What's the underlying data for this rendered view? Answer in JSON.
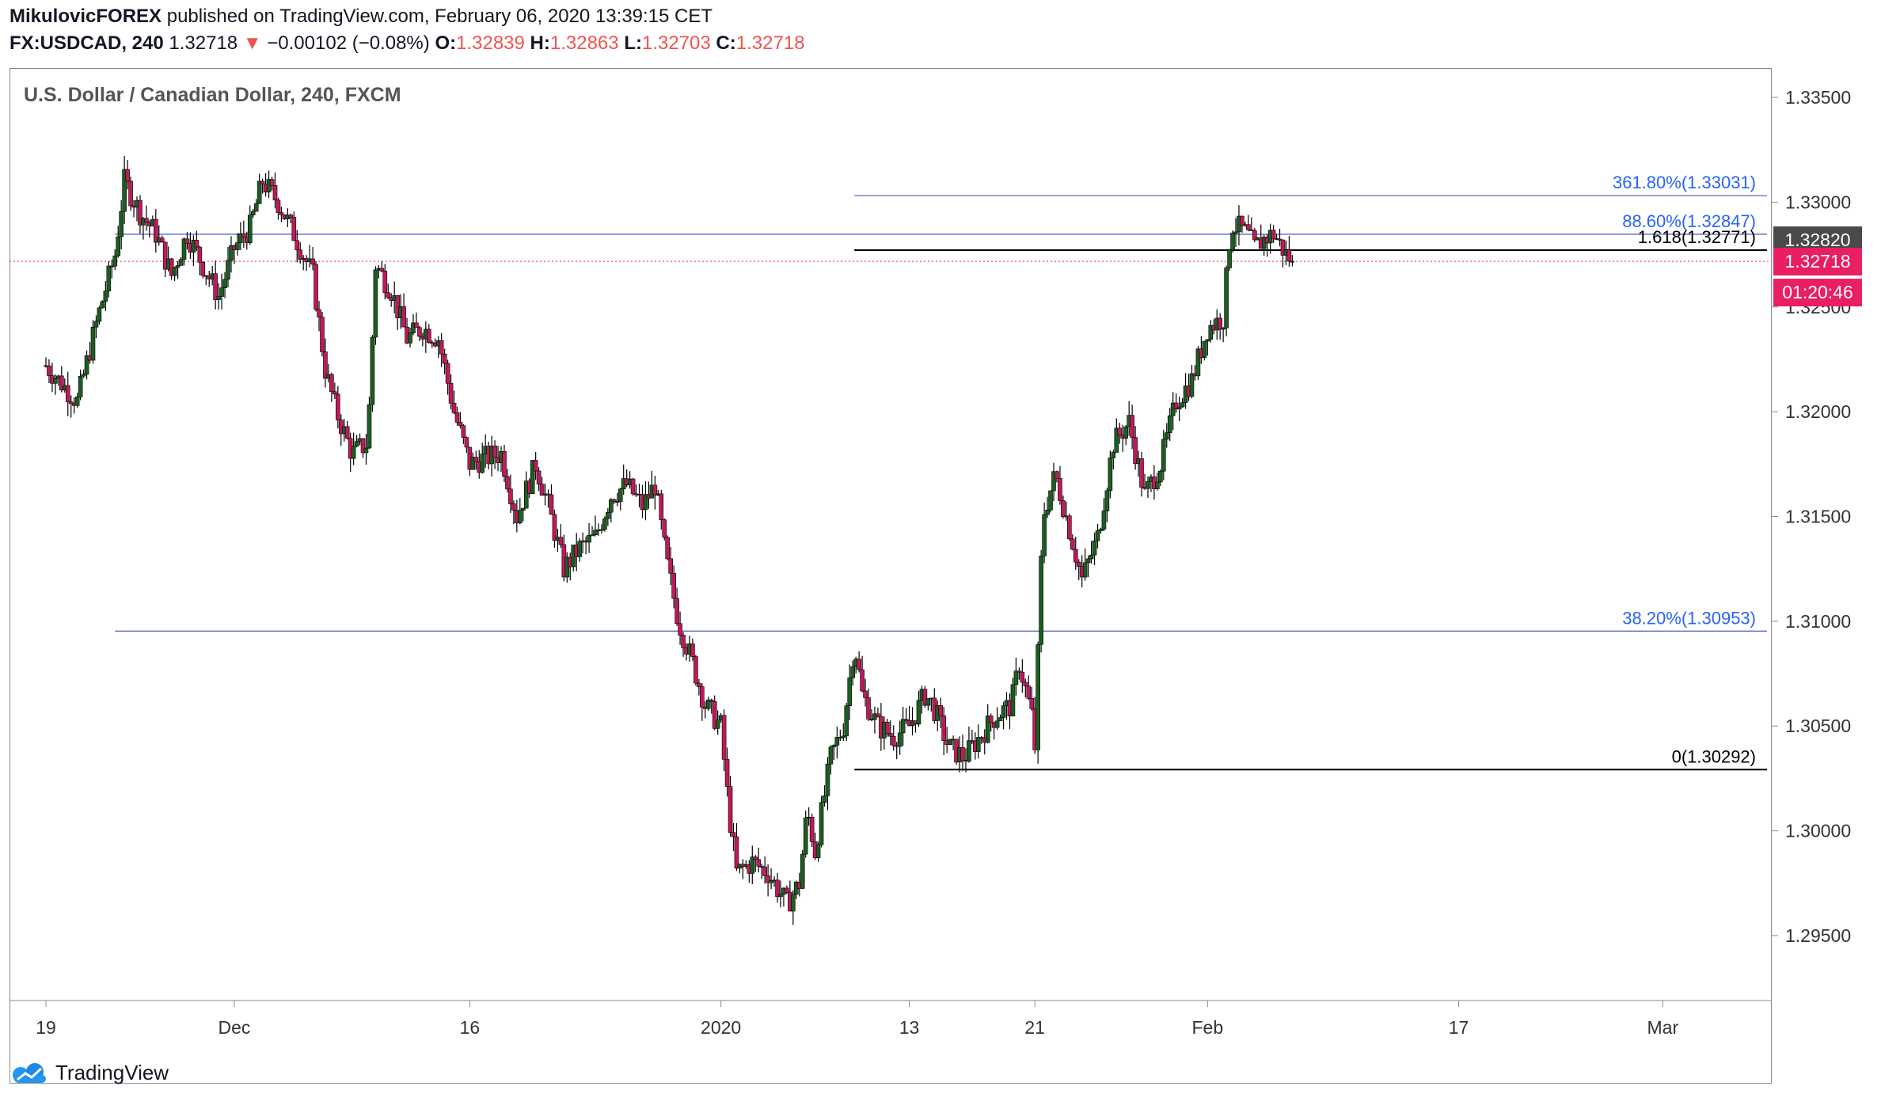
{
  "header": {
    "author": "MikulovicFOREX",
    "published_text": "published on TradingView.com, February 06, 2020 13:39:15 CET",
    "symbol": "FX:USDCAD, 240",
    "last": "1.32718",
    "change_arrow": "▼",
    "change": "−0.00102 (−0.08%)",
    "o_label": "O:",
    "o_value": "1.32839",
    "h_label": "H:",
    "h_value": "1.32863",
    "l_label": "L:",
    "l_value": "1.32703",
    "c_label": "C:",
    "c_value": "1.32718"
  },
  "footer": {
    "brand": "TradingView",
    "logo_icon": "tradingview-logo-icon"
  },
  "colors": {
    "up": "#26a69a",
    "up_body": "#1b5e20",
    "down": "#c2185b",
    "wick": "#000000",
    "fib_blue": "#2962ff",
    "fib_line": "#5c6bc0",
    "black": "#000000",
    "current_price": "#e91e63",
    "prev_close": "#4a4a4a",
    "header_down": "#ef5350"
  },
  "chart_data": {
    "type": "candlestick",
    "title": "U.S. Dollar / Canadian Dollar, 240, FXCM",
    "ylim": [
      1.2919,
      1.3364
    ],
    "y_ticks": [
      "1.33500",
      "1.33000",
      "1.32500",
      "1.32000",
      "1.31500",
      "1.31000",
      "1.30500",
      "1.30000",
      "1.29500"
    ],
    "x_ticks": [
      {
        "label": "19",
        "day": 0
      },
      {
        "label": "Dec",
        "day": 12
      },
      {
        "label": "16",
        "day": 27
      },
      {
        "label": "2020",
        "day": 43
      },
      {
        "label": "13",
        "day": 55
      },
      {
        "label": "21",
        "day": 63
      },
      {
        "label": "Feb",
        "day": 74
      },
      {
        "label": "17",
        "day": 90
      },
      {
        "label": "Mar",
        "day": 103
      }
    ],
    "x_unit": "days since Nov 19, 2019",
    "xlim": [
      0,
      109
    ],
    "price_labels": [
      {
        "value": "1.32820",
        "kind": "prev_close"
      },
      {
        "value": "1.32718",
        "kind": "current"
      },
      {
        "value": "01:20:46",
        "kind": "countdown"
      }
    ],
    "levels": [
      {
        "label": "361.80%(1.33031)",
        "price": 1.33031,
        "from_day": 51.5,
        "style": "fib"
      },
      {
        "label": "88.60%(1.32847)",
        "price": 1.32847,
        "from_day": 4.4,
        "style": "fib"
      },
      {
        "label": "1.618(1.32771)",
        "price": 1.32771,
        "from_day": 51.5,
        "style": "black"
      },
      {
        "label": "38.20%(1.30953)",
        "price": 1.30953,
        "from_day": 4.4,
        "style": "fib"
      },
      {
        "label": "0(1.30292)",
        "price": 1.30292,
        "from_day": 51.5,
        "style": "black"
      }
    ],
    "current_price": 1.32718,
    "path": [
      [
        0,
        1.3222
      ],
      [
        2,
        1.3205
      ],
      [
        3.3,
        1.3245
      ],
      [
        4.4,
        1.3275
      ],
      [
        5,
        1.331
      ],
      [
        6,
        1.3295
      ],
      [
        7,
        1.3285
      ],
      [
        8,
        1.3265
      ],
      [
        9,
        1.3285
      ],
      [
        10,
        1.327
      ],
      [
        11,
        1.3255
      ],
      [
        12,
        1.3278
      ],
      [
        13,
        1.3288
      ],
      [
        13.8,
        1.331
      ],
      [
        14.8,
        1.33
      ],
      [
        15.8,
        1.3285
      ],
      [
        17,
        1.3265
      ],
      [
        17.8,
        1.322
      ],
      [
        18.5,
        1.32
      ],
      [
        19.5,
        1.318
      ],
      [
        20.5,
        1.3185
      ],
      [
        21,
        1.327
      ],
      [
        22,
        1.3258
      ],
      [
        23,
        1.3235
      ],
      [
        24,
        1.324
      ],
      [
        25,
        1.3235
      ],
      [
        26,
        1.32
      ],
      [
        27,
        1.3175
      ],
      [
        28,
        1.3178
      ],
      [
        29,
        1.318
      ],
      [
        30,
        1.315
      ],
      [
        31.2,
        1.3175
      ],
      [
        32,
        1.3155
      ],
      [
        33,
        1.3125
      ],
      [
        34,
        1.3135
      ],
      [
        35,
        1.314
      ],
      [
        36,
        1.316
      ],
      [
        37,
        1.3165
      ],
      [
        38,
        1.3155
      ],
      [
        38.8,
        1.3165
      ],
      [
        39.5,
        1.313
      ],
      [
        40.3,
        1.31
      ],
      [
        41.2,
        1.308
      ],
      [
        42,
        1.306
      ],
      [
        43,
        1.305
      ],
      [
        43.5,
        1.301
      ],
      [
        44,
        1.298
      ],
      [
        45,
        1.2985
      ],
      [
        46,
        1.298
      ],
      [
        47.2,
        1.2965
      ],
      [
        48,
        1.2975
      ],
      [
        48.5,
        1.301
      ],
      [
        49,
        1.299
      ],
      [
        50,
        1.3035
      ],
      [
        50.8,
        1.305
      ],
      [
        51.5,
        1.309
      ],
      [
        52,
        1.3065
      ],
      [
        53,
        1.305
      ],
      [
        54,
        1.3045
      ],
      [
        55,
        1.305
      ],
      [
        56,
        1.3065
      ],
      [
        56.5,
        1.306
      ],
      [
        57.5,
        1.304
      ],
      [
        58.5,
        1.3035
      ],
      [
        59.5,
        1.3045
      ],
      [
        60.5,
        1.3055
      ],
      [
        61.5,
        1.306
      ],
      [
        62,
        1.308
      ],
      [
        62.8,
        1.3055
      ],
      [
        63,
        1.304
      ],
      [
        63.5,
        1.315
      ],
      [
        64.3,
        1.317
      ],
      [
        65,
        1.315
      ],
      [
        66,
        1.312
      ],
      [
        67,
        1.314
      ],
      [
        68,
        1.3185
      ],
      [
        69,
        1.3195
      ],
      [
        70,
        1.316
      ],
      [
        71,
        1.3175
      ],
      [
        72,
        1.3205
      ],
      [
        73,
        1.3215
      ],
      [
        74,
        1.324
      ],
      [
        75,
        1.3245
      ],
      [
        75.5,
        1.329
      ],
      [
        76.5,
        1.3285
      ],
      [
        77,
        1.3278
      ],
      [
        77.5,
        1.3282
      ],
      [
        78.2,
        1.3285
      ],
      [
        79,
        1.3275
      ],
      [
        79.4,
        1.3272
      ]
    ]
  }
}
